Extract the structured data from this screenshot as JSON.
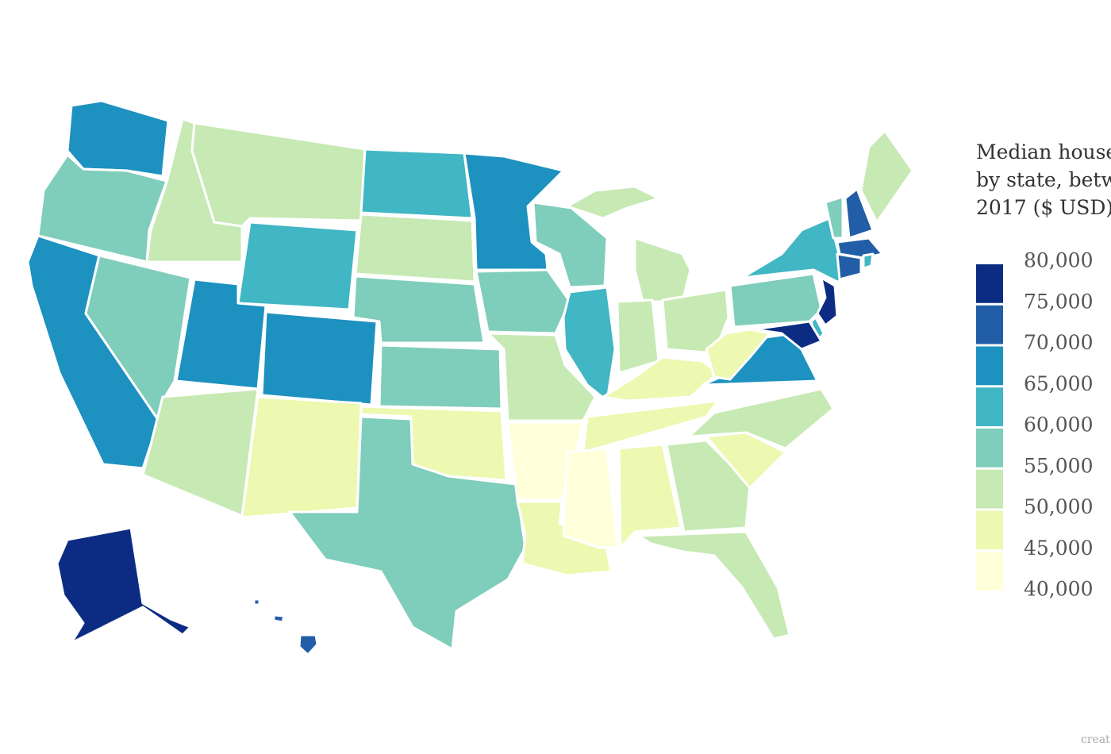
{
  "chart_data": {
    "type": "choropleth",
    "title": [
      "Median house",
      "by state, betw",
      "2017 ($ USD)"
    ],
    "footer": "creat",
    "values": [
      67000,
      57000,
      67000,
      52000,
      57000,
      52000,
      62000,
      67000,
      52000,
      67000,
      47000,
      62000,
      52000,
      57000,
      57000,
      47000,
      57000,
      67000,
      57000,
      52000,
      42000,
      47000,
      57000,
      62000,
      52000,
      52000,
      52000,
      47000,
      47000,
      42000,
      47000,
      52000,
      52000,
      47000,
      52000,
      67000,
      47000,
      57000,
      62000,
      57000,
      72000,
      52000,
      72000,
      72000,
      62000,
      77000,
      62000,
      77000,
      77000,
      72000
    ],
    "legend_ticks": [
      {
        "value": 40000,
        "label": "40,000"
      },
      {
        "value": 45000,
        "label": "45,000"
      },
      {
        "value": 50000,
        "label": "50,000"
      },
      {
        "value": 55000,
        "label": "55,000"
      },
      {
        "value": 60000,
        "label": "60,000"
      },
      {
        "value": 65000,
        "label": "65,000"
      },
      {
        "value": 70000,
        "label": "70,000"
      },
      {
        "value": 75000,
        "label": "75,000"
      },
      {
        "value": 80000,
        "label": "80,000"
      }
    ],
    "colors": [
      "#ffffd9",
      "#edf8b1",
      "#c7e9b4",
      "#7fcdbb",
      "#41b6c4",
      "#1d91c0",
      "#225ea8",
      "#0c2c84"
    ]
  }
}
